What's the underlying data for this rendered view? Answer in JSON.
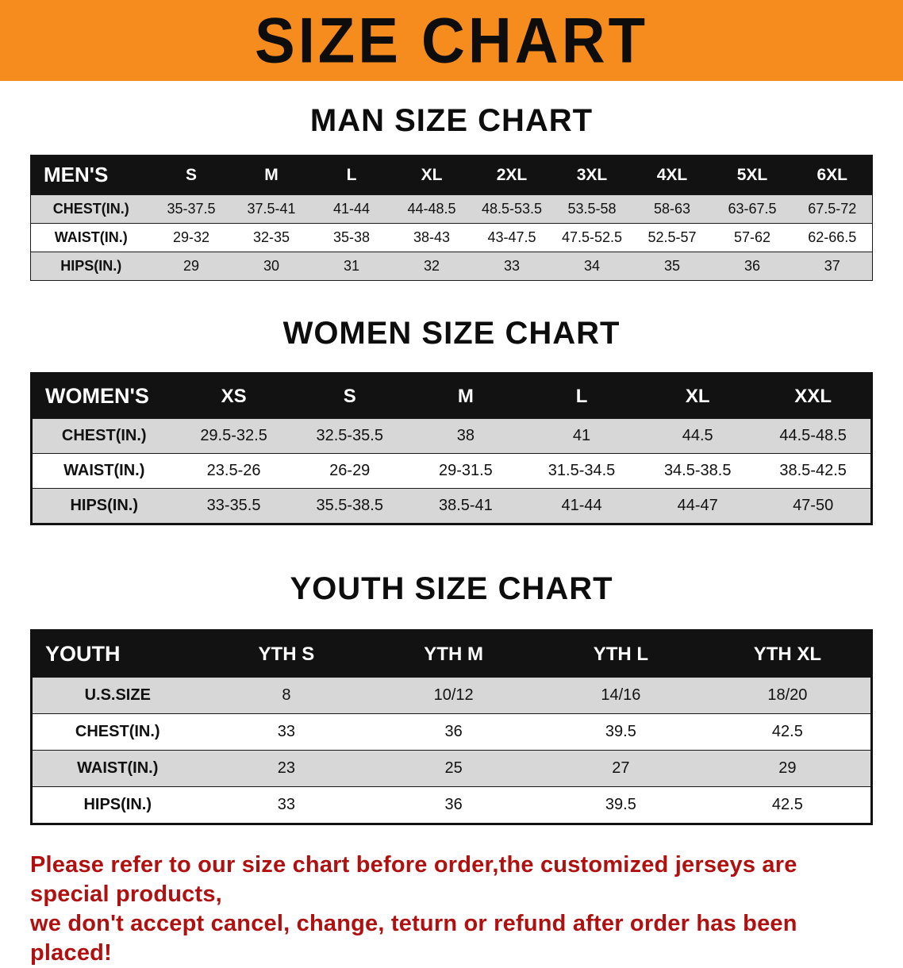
{
  "banner": {
    "title": "SIZE CHART"
  },
  "sections": [
    {
      "heading": "MAN SIZE CHART",
      "table": {
        "header": [
          "MEN'S",
          "S",
          "M",
          "L",
          "XL",
          "2XL",
          "3XL",
          "4XL",
          "5XL",
          "6XL"
        ],
        "rows": [
          [
            "CHEST(IN.)",
            "35-37.5",
            "37.5-41",
            "41-44",
            "44-48.5",
            "48.5-53.5",
            "53.5-58",
            "58-63",
            "63-67.5",
            "67.5-72"
          ],
          [
            "WAIST(IN.)",
            "29-32",
            "32-35",
            "35-38",
            "38-43",
            "43-47.5",
            "47.5-52.5",
            "52.5-57",
            "57-62",
            "62-66.5"
          ],
          [
            "HIPS(IN.)",
            "29",
            "30",
            "31",
            "32",
            "33",
            "34",
            "35",
            "36",
            "37"
          ]
        ]
      }
    },
    {
      "heading": "WOMEN SIZE CHART",
      "table": {
        "header": [
          "WOMEN'S",
          "XS",
          "S",
          "M",
          "L",
          "XL",
          "XXL"
        ],
        "rows": [
          [
            "CHEST(IN.)",
            "29.5-32.5",
            "32.5-35.5",
            "38",
            "41",
            "44.5",
            "44.5-48.5"
          ],
          [
            "WAIST(IN.)",
            "23.5-26",
            "26-29",
            "29-31.5",
            "31.5-34.5",
            "34.5-38.5",
            "38.5-42.5"
          ],
          [
            "HIPS(IN.)",
            "33-35.5",
            "35.5-38.5",
            "38.5-41",
            "41-44",
            "44-47",
            "47-50"
          ]
        ]
      }
    },
    {
      "heading": "YOUTH SIZE CHART",
      "table": {
        "header": [
          "YOUTH",
          "YTH S",
          "YTH M",
          "YTH L",
          "YTH XL"
        ],
        "rows": [
          [
            "U.S.SIZE",
            "8",
            "10/12",
            "14/16",
            "18/20"
          ],
          [
            "CHEST(IN.)",
            "33",
            "36",
            "39.5",
            "42.5"
          ],
          [
            "WAIST(IN.)",
            "23",
            "25",
            "27",
            "29"
          ],
          [
            "HIPS(IN.)",
            "33",
            "36",
            "39.5",
            "42.5"
          ]
        ]
      }
    }
  ],
  "footer": {
    "line1": "Please refer to our size chart before order,the customized jerseys are special products,",
    "line2": "we don't accept cancel, change, teturn or refund after order has been placed!"
  },
  "colors": {
    "banner_bg": "#f68b1e",
    "header_bg": "#121212",
    "row_alt": "#d7d7d7",
    "footer_text": "#b01010"
  }
}
